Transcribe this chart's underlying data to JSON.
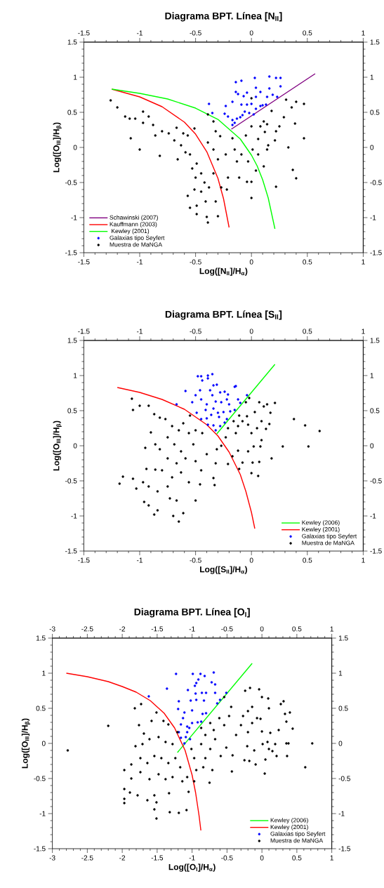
{
  "chart_data": [
    {
      "type": "scatter",
      "title": "Diagrama BPT. Línea [N$_{II}$]",
      "xlabel": "Log([N$_{II}$]/H$_{α}$)",
      "ylabel": "Log([O$_{III}$]/H$_{β}$)",
      "xlim": [
        -1.5,
        1
      ],
      "ylim": [
        -1.5,
        1.5
      ],
      "xticks": [
        -1.5,
        -1,
        -0.5,
        0,
        0.5,
        1
      ],
      "yticks": [
        -1.5,
        -1,
        -0.5,
        0,
        0.5,
        1,
        1.5
      ],
      "x2lim": [
        -1.5,
        1
      ],
      "x2ticks": [
        -1.5,
        -1,
        -0.5,
        0,
        0.5,
        1
      ],
      "y2lim": [
        -1.5,
        1.5
      ],
      "y2ticks": [
        -1.5,
        -1,
        -0.5,
        0,
        0.5,
        1,
        1.5
      ],
      "legend": "bottom left",
      "series": [
        {
          "name": "Schawinski (2007)",
          "type": "line",
          "color": "#800080",
          "x": [
            -0.18,
            0.57
          ],
          "values": [
            0.26,
            1.05
          ]
        },
        {
          "name": "Kauffmann (2003)",
          "type": "line",
          "color": "#ff0000",
          "x": [
            -1.25,
            -1.0,
            -0.8,
            -0.6,
            -0.5,
            -0.4,
            -0.3,
            -0.25,
            -0.2
          ],
          "values": [
            0.83,
            0.72,
            0.58,
            0.36,
            0.19,
            -0.06,
            -0.44,
            -0.73,
            -1.14
          ]
        },
        {
          "name": " Kewley (2001)",
          "type": "line",
          "color": "#00ff00",
          "x": [
            -1.25,
            -1.0,
            -0.75,
            -0.5,
            -0.3,
            -0.1,
            0,
            0.05,
            0.1,
            0.15,
            0.21
          ],
          "values": [
            0.83,
            0.77,
            0.69,
            0.56,
            0.4,
            0.12,
            -0.11,
            -0.26,
            -0.46,
            -0.72,
            -1.16
          ]
        },
        {
          "name": "Galaxias tipo Seyfert",
          "marker": "circle",
          "color": "#0000ff",
          "x": [
            -0.14,
            -0.09,
            0.03,
            0.16,
            0.22,
            0.26,
            0.04,
            0.26,
            0.16,
            -0.14,
            -0.04,
            0.08,
            -0.12,
            -0.07,
            0.04,
            0.14,
            0.19,
            0.23,
            -0.38,
            -0.23,
            -0.17,
            -0.09,
            -0.04,
            0.0,
            0.08,
            0.13,
            -0.35,
            -0.24,
            -0.21,
            -0.06,
            -0.02,
            0.02,
            -0.1,
            -0.08,
            -0.17,
            -0.13,
            -0.17,
            -0.15,
            0.04,
            0.1
          ],
          "values": [
            0.93,
            0.95,
            0.99,
            1.01,
            0.99,
            0.99,
            0.85,
            0.87,
            0.84,
            0.79,
            0.78,
            0.79,
            0.76,
            0.73,
            0.72,
            0.72,
            0.75,
            0.72,
            0.62,
            0.59,
            0.65,
            0.61,
            0.61,
            0.62,
            0.59,
            0.61,
            0.49,
            0.48,
            0.44,
            0.51,
            0.49,
            0.47,
            0.43,
            0.46,
            0.39,
            0.41,
            0.32,
            0.35,
            0.55,
            0.6
          ]
        },
        {
          "name": "Muestra de MaNGA",
          "marker": "circle",
          "color": "#000000",
          "x": [
            -1.26,
            -1.2,
            -1.13,
            -1.09,
            -1.04,
            -0.97,
            -0.92,
            -1.08,
            -1.0,
            -0.97,
            -0.88,
            -0.86,
            -0.82,
            -0.8,
            -0.74,
            -0.69,
            -0.67,
            -0.63,
            -0.61,
            -0.57,
            -0.59,
            -0.66,
            -0.55,
            -0.51,
            -0.53,
            -0.49,
            -0.45,
            -0.5,
            -0.42,
            -0.51,
            -0.57,
            -0.45,
            -0.38,
            -0.34,
            -0.49,
            -0.49,
            -0.4,
            -0.39,
            -0.3,
            -0.55,
            -0.41,
            -0.32,
            -0.27,
            -0.22,
            -0.21,
            -0.3,
            -0.23,
            -0.34,
            -0.39,
            -0.32,
            -0.34,
            -0.39,
            -0.28,
            -0.17,
            -0.15,
            -0.13,
            -0.11,
            -0.04,
            0.0,
            0.0,
            -0.09,
            -0.05,
            0.0,
            0.0,
            0.01,
            0.06,
            0.08,
            0.11,
            0.14,
            0.12,
            0.18,
            0.15,
            0.22,
            0.25,
            0.31,
            0.29,
            0.21,
            0.11,
            0.14,
            0.22,
            0.33,
            0.39,
            0.4,
            0.47,
            0.47,
            0.37,
            0.4,
            0.36,
            0.04,
            -0.03,
            0.06
          ],
          "values": [
            0.67,
            0.57,
            0.44,
            0.41,
            0.41,
            0.51,
            0.44,
            0.13,
            -0.03,
            0.35,
            0.32,
            0.17,
            -0.12,
            0.23,
            0.2,
            0.1,
            0.28,
            0.03,
            0.2,
            0.17,
            -0.07,
            -0.17,
            -0.1,
            0.27,
            -0.3,
            -0.23,
            -0.37,
            -0.43,
            -0.5,
            -0.6,
            -0.69,
            -0.63,
            -0.57,
            -0.37,
            -0.83,
            -0.95,
            -0.99,
            -1.07,
            -0.98,
            -0.86,
            -0.77,
            -0.77,
            -0.57,
            -0.6,
            -0.43,
            -0.17,
            -0.1,
            -0.03,
            0.07,
            0.23,
            0.37,
            0.47,
            0.16,
            0.13,
            -0.03,
            -0.2,
            -0.43,
            -0.49,
            -0.49,
            -0.72,
            -0.1,
            0.17,
            0.3,
            0.7,
            -0.03,
            0.12,
            0.3,
            0.37,
            0.33,
            0.22,
            0.52,
            0.03,
            0.23,
            0.3,
            0.68,
            0.43,
            0.1,
            -0.27,
            -0.03,
            -0.56,
            0.0,
            0.34,
            0.65,
            0.62,
            0.13,
            -0.32,
            -0.44,
            0.57,
            -0.33,
            -0.2,
            -0.1
          ]
        }
      ]
    },
    {
      "type": "scatter",
      "title": "Diagrama BPT. Línea [S$_{II}$]",
      "xlabel": "Log([S$_{II}$]/H$_{α}$)",
      "ylabel": "Log([O$_{III}$]/H$_{β}$)",
      "xlim": [
        -1.5,
        1
      ],
      "ylim": [
        -1.5,
        1.5
      ],
      "xticks": [
        -1.5,
        -1,
        -0.5,
        0,
        0.5,
        1
      ],
      "yticks": [
        -1.5,
        -1,
        -0.5,
        0,
        0.5,
        1,
        1.5
      ],
      "x2lim": [
        -1.5,
        1
      ],
      "x2ticks": [
        -1.5,
        -1,
        -0.5,
        0,
        0.5,
        1
      ],
      "y2lim": [
        -1.5,
        1.5
      ],
      "y2ticks": [
        -1.5,
        -1,
        -0.5,
        0,
        0.5,
        1,
        1.5
      ],
      "legend": "bottom right",
      "series": [
        {
          "name": "Kewley (2006)",
          "type": "line",
          "color": "#00ff00",
          "x": [
            -0.31,
            0.21
          ],
          "values": [
            0.17,
            1.16
          ]
        },
        {
          "name": "Kewley (2001)",
          "type": "line",
          "color": "#ff0000",
          "x": [
            -1.2,
            -1.0,
            -0.8,
            -0.6,
            -0.4,
            -0.3,
            -0.2,
            -0.1,
            -0.05,
            0,
            0.03
          ],
          "values": [
            0.83,
            0.76,
            0.66,
            0.52,
            0.3,
            0.14,
            -0.09,
            -0.41,
            -0.65,
            -0.95,
            -1.18
          ]
        },
        {
          "name": "Galaxias tipo Seyfert",
          "marker": "circle",
          "color": "#0000ff",
          "x": [
            -0.48,
            -0.45,
            -0.44,
            -0.39,
            -0.35,
            -0.39,
            -0.34,
            -0.31,
            -0.15,
            -0.14,
            -0.59,
            -0.46,
            -0.5,
            -0.37,
            -0.35,
            -0.28,
            -0.24,
            -0.21,
            -0.04,
            -0.67,
            -0.53,
            -0.45,
            -0.4,
            -0.32,
            -0.27,
            -0.22,
            -0.2,
            -0.12,
            -0.1,
            -0.41,
            -0.34,
            -0.3,
            -0.25,
            -0.19,
            -0.15,
            -0.49,
            -0.36,
            -0.29,
            -0.22,
            -0.45,
            -0.4,
            -0.39,
            -0.34,
            -0.28,
            -0.24,
            -0.32
          ],
          "values": [
            0.99,
            0.99,
            0.93,
            1.0,
            1.02,
            0.96,
            0.86,
            0.87,
            0.84,
            0.85,
            0.78,
            0.79,
            0.72,
            0.79,
            0.72,
            0.76,
            0.77,
            0.73,
            0.72,
            0.59,
            0.62,
            0.66,
            0.59,
            0.63,
            0.62,
            0.66,
            0.59,
            0.66,
            0.61,
            0.51,
            0.53,
            0.47,
            0.48,
            0.49,
            0.51,
            0.47,
            0.44,
            0.41,
            0.38,
            0.38,
            0.39,
            0.3,
            0.29,
            0.28,
            0.33,
            0.22
          ]
        },
        {
          "name": "Muestra de MaNGA",
          "marker": "circle",
          "color": "#000000",
          "x": [
            -1.07,
            -1.0,
            -0.92,
            -1.06,
            -0.87,
            -0.82,
            -0.77,
            -0.9,
            -0.86,
            -0.95,
            -0.82,
            -0.75,
            -0.71,
            -0.65,
            -0.61,
            -0.55,
            -0.56,
            -0.5,
            -0.44,
            -0.69,
            -0.63,
            -0.52,
            -0.75,
            -0.67,
            -0.59,
            -0.5,
            -0.45,
            -0.8,
            -0.94,
            -0.86,
            -0.71,
            -0.63,
            -0.56,
            -0.75,
            -0.84,
            -0.92,
            -0.97,
            -1.03,
            -1.06,
            -1.15,
            -1.18,
            -0.96,
            -0.92,
            -0.87,
            -0.84,
            -0.73,
            -0.67,
            -0.7,
            -0.65,
            -0.61,
            -0.5,
            -0.46,
            -0.34,
            -0.33,
            -0.4,
            -0.31,
            -0.27,
            -0.32,
            -0.21,
            -0.17,
            -0.12,
            -0.11,
            -0.08,
            -0.03,
            0.01,
            0.0,
            0.07,
            0.06,
            0.02,
            0.08,
            0.09,
            0.18,
            0.28,
            0.51,
            0.38,
            0.48,
            0.61,
            0.21,
            0.14,
            0.11,
            0.07,
            0.17,
            0.09,
            0.16,
            0.13,
            -0.02,
            -0.05,
            0.03,
            -0.04,
            -0.08,
            -0.12,
            -0.14,
            -0.21,
            -0.23,
            0.0,
            0.05,
            -0.03,
            -0.11,
            -0.16
          ],
          "values": [
            0.67,
            0.57,
            0.57,
            0.51,
            0.45,
            0.4,
            0.38,
            0.19,
            0.02,
            -0.03,
            -0.05,
            0.12,
            0.28,
            0.22,
            0.32,
            0.43,
            0.18,
            0.22,
            0.18,
            0.02,
            -0.08,
            0.02,
            -0.18,
            -0.25,
            -0.18,
            -0.22,
            -0.35,
            -0.35,
            -0.33,
            -0.34,
            -0.45,
            -0.38,
            -0.52,
            -0.58,
            -0.65,
            -0.58,
            -0.52,
            -0.61,
            -0.47,
            -0.44,
            -0.54,
            -0.8,
            -0.85,
            -0.98,
            -0.92,
            -0.75,
            -0.78,
            -1.0,
            -1.08,
            -0.96,
            -0.78,
            -0.55,
            -0.46,
            -0.56,
            -0.12,
            -0.05,
            0.0,
            -0.25,
            -0.26,
            -0.15,
            -0.07,
            -0.33,
            -0.24,
            -0.08,
            -0.24,
            -0.39,
            -0.23,
            -0.43,
            -0.01,
            -0.01,
            0.08,
            -0.18,
            -0.01,
            -0.01,
            0.38,
            0.29,
            0.21,
            0.61,
            0.59,
            0.56,
            0.62,
            0.47,
            0.35,
            0.31,
            0.24,
            0.68,
            0.62,
            0.48,
            0.42,
            0.35,
            0.28,
            0.18,
            0.25,
            0.12,
            0.18,
            0.25,
            0.3,
            0.43,
            0.35
          ]
        }
      ]
    },
    {
      "type": "scatter",
      "title": "Diagrama BPT. Línea [O$_{I}$]",
      "xlabel": "Log([O$_{I}$]/H$_{α}$)",
      "ylabel": "Log([O$_{III}$]/H$_{β}$)",
      "xlim": [
        -3,
        1
      ],
      "ylim": [
        -1.5,
        1.5
      ],
      "xticks": [
        -3,
        -2.5,
        -2,
        -1.5,
        -1,
        -0.5,
        0,
        0.5,
        1
      ],
      "yticks": [
        -1.5,
        -1,
        -0.5,
        0,
        0.5,
        1,
        1.5
      ],
      "x2lim": [
        -3,
        1
      ],
      "x2ticks": [
        -3,
        -2.5,
        -2,
        -1.5,
        -1,
        -0.5,
        0,
        0.5,
        1
      ],
      "y2lim": [
        -1.5,
        1.5
      ],
      "y2ticks": [
        -1.5,
        -1,
        -0.5,
        0,
        0.5,
        1,
        1.5
      ],
      "legend": "bottom right",
      "series": [
        {
          "name": "Kewley (2006)",
          "type": "line",
          "color": "#00ff00",
          "x": [
            -1.21,
            -0.14
          ],
          "values": [
            -0.13,
            1.14
          ]
        },
        {
          "name": "Kewley (2001)",
          "type": "line",
          "color": "#ff0000",
          "x": [
            -2.8,
            -2.5,
            -2.2,
            -2.0,
            -1.8,
            -1.6,
            -1.4,
            -1.25,
            -1.1,
            -1.0,
            -0.95,
            -0.9,
            -0.874
          ],
          "values": [
            1.0,
            0.95,
            0.88,
            0.81,
            0.73,
            0.61,
            0.43,
            0.22,
            -0.1,
            -0.45,
            -0.7,
            -1.03,
            -1.24
          ]
        },
        {
          "name": "Galaxias tipo Seyfert",
          "marker": "circle",
          "color": "#0000ff",
          "x": [
            -1.23,
            -0.99,
            -0.88,
            -0.82,
            -0.69,
            -1.36,
            -1.06,
            -0.96,
            -0.94,
            -0.91,
            -0.72,
            -0.67,
            -0.95,
            -0.86,
            -0.8,
            -0.67,
            -0.51,
            -1.62,
            -1.19,
            -1.02,
            -0.94,
            -0.83,
            -0.64,
            -0.6,
            -1.2,
            -1.0,
            -1.11,
            -0.85,
            -0.8,
            -1.13,
            -1.0,
            -0.92,
            -0.87,
            -1.16,
            -1.07,
            -1.04,
            -1.19,
            -1.07,
            -1.16,
            -1.09,
            -1.03,
            -1.11
          ],
          "values": [
            0.99,
            0.99,
            0.99,
            0.96,
            1.01,
            0.78,
            0.76,
            0.82,
            0.86,
            0.91,
            0.87,
            0.84,
            0.71,
            0.72,
            0.72,
            0.72,
            0.72,
            0.67,
            0.6,
            0.61,
            0.62,
            0.61,
            0.57,
            0.62,
            0.49,
            0.47,
            0.44,
            0.42,
            0.43,
            0.36,
            0.29,
            0.3,
            0.31,
            0.27,
            0.24,
            0.22,
            0.16,
            0.16,
            0.08,
            0.09,
            0.06,
            0.0
          ]
        },
        {
          "name": "Muestra de MaNGA",
          "marker": "circle",
          "color": "#000000",
          "x": [
            -2.78,
            -2.2,
            -1.82,
            -1.73,
            -1.76,
            -1.69,
            -1.58,
            -1.51,
            -1.41,
            -1.34,
            -1.21,
            -1.81,
            -1.71,
            -1.61,
            -1.48,
            -1.38,
            -1.28,
            -1.97,
            -1.87,
            -1.87,
            -1.74,
            -1.64,
            -1.54,
            -1.44,
            -1.34,
            -1.24,
            -1.17,
            -1.74,
            -1.61,
            -1.48,
            -1.38,
            -1.28,
            -1.14,
            -1.07,
            -1.97,
            -1.89,
            -1.97,
            -1.97,
            -1.78,
            -1.64,
            -1.54,
            -1.51,
            -1.54,
            -1.51,
            -1.32,
            -1.19,
            -1.08,
            -1.33,
            -1.05,
            -0.97,
            -0.94,
            -0.84,
            -0.75,
            -0.71,
            -0.81,
            -0.97,
            -1.01,
            -0.87,
            -0.74,
            -0.67,
            -0.81,
            -0.87,
            -0.74,
            -0.69,
            -0.61,
            -0.54,
            -0.47,
            -0.54,
            -0.44,
            -0.59,
            -0.51,
            -0.43,
            -0.42,
            -0.37,
            -0.3,
            -0.27,
            -0.2,
            -0.24,
            -0.17,
            -0.14,
            -0.2,
            -0.14,
            -0.07,
            -0.02,
            -0.04,
            0.0,
            -0.21,
            -0.11,
            -0.25,
            -0.18,
            -0.09,
            0.05,
            0.04,
            0.0,
            0.12,
            0.09,
            0.1,
            0.01,
            0.08,
            0.1,
            0.19,
            0.15,
            0.21,
            0.24,
            0.27,
            0.31,
            0.35,
            0.33,
            0.4,
            0.44,
            0.35,
            0.38,
            0.36,
            0.62,
            0.72
          ],
          "values": [
            -0.1,
            0.25,
            0.5,
            0.56,
            0.26,
            0.14,
            0.32,
            0.44,
            0.32,
            0.27,
            0.16,
            -0.04,
            -0.01,
            0.06,
            0.09,
            0.02,
            -0.01,
            -0.38,
            -0.3,
            -0.5,
            -0.21,
            -0.28,
            -0.18,
            -0.21,
            -0.28,
            -0.21,
            -0.34,
            -0.41,
            -0.51,
            -0.44,
            -0.51,
            -0.48,
            -0.54,
            -0.48,
            -0.65,
            -0.7,
            -0.79,
            -0.85,
            -0.74,
            -0.81,
            -0.74,
            -0.84,
            -0.94,
            -1.07,
            -0.98,
            -0.99,
            -0.95,
            -0.71,
            -0.69,
            -0.54,
            -0.38,
            -0.34,
            -0.56,
            -0.38,
            -0.21,
            -0.21,
            -0.08,
            -0.01,
            -0.08,
            0.06,
            0.12,
            0.22,
            0.29,
            0.19,
            0.36,
            0.26,
            0.39,
            0.66,
            0.52,
            -0.18,
            -0.06,
            -0.4,
            -0.17,
            0.12,
            0.26,
            0.39,
            0.46,
            0.75,
            0.79,
            0.52,
            0.16,
            0.29,
            0.36,
            0.35,
            0.77,
            0.66,
            -0.04,
            -0.1,
            -0.24,
            -0.25,
            -0.3,
            -0.23,
            -0.43,
            0.17,
            0.15,
            0.64,
            0.5,
            -0.01,
            0.02,
            -0.08,
            -0.01,
            -0.11,
            -0.18,
            0.19,
            0.56,
            0.6,
            0.31,
            0.42,
            0.44,
            0.21,
            0.0,
            0.0,
            -0.18,
            -0.34,
            0.0
          ]
        }
      ]
    }
  ]
}
